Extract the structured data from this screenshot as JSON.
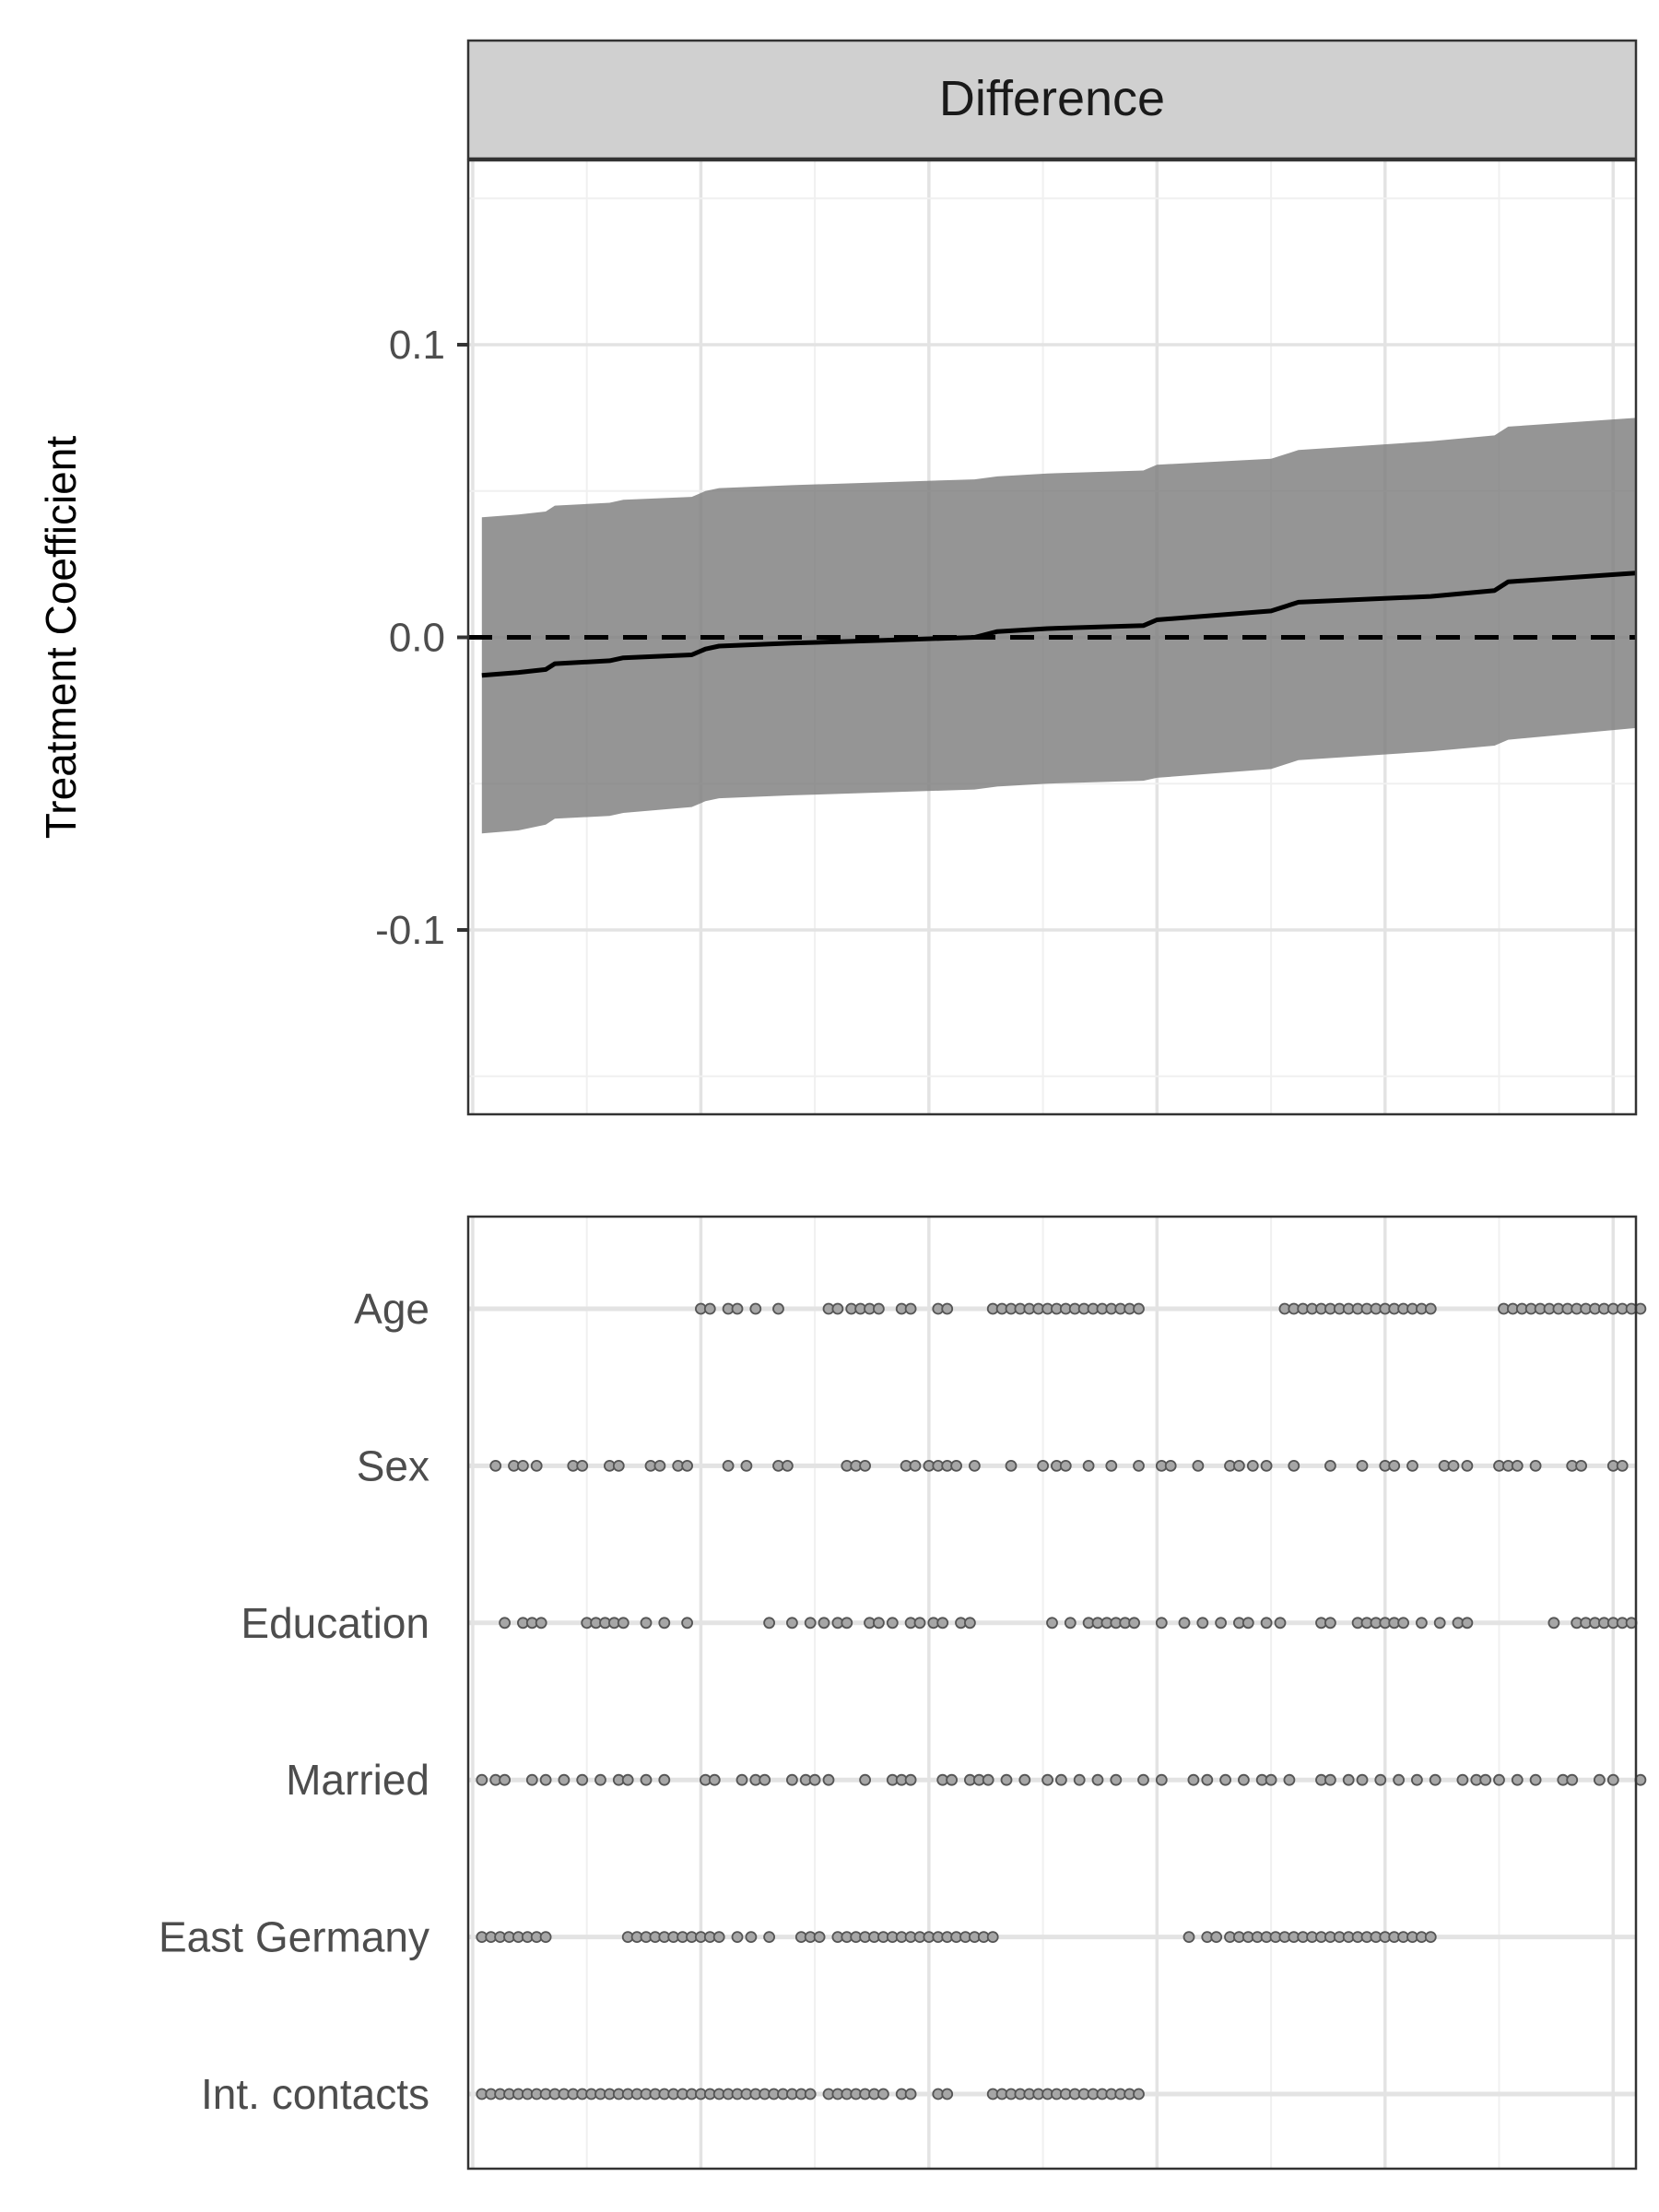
{
  "chart_data": [
    {
      "type": "line",
      "strip_title": "Difference",
      "ylabel": "Treatment Coefficient",
      "ylim": [
        -0.163,
        0.163
      ],
      "y_ticks": [
        -0.1,
        0.0,
        0.1
      ],
      "y_tick_labels": [
        "-0.1",
        "0.0",
        "0.1"
      ],
      "x_range": [
        -1,
        255
      ],
      "x_major_gridlines": [
        0,
        50,
        100,
        150,
        200,
        250
      ],
      "x_minor_gridlines": [
        25,
        75,
        125,
        175,
        225
      ],
      "grid": true,
      "reference_line": {
        "y": 0.0,
        "style": "dashed"
      },
      "series": [
        {
          "kind": "estimate",
          "x": [
            2,
            10,
            16,
            18,
            30,
            33,
            48,
            51,
            54,
            70,
            90,
            110,
            115,
            126,
            147,
            150,
            175,
            181,
            210,
            224,
            227,
            255
          ],
          "y": [
            -0.013,
            -0.012,
            -0.011,
            -0.009,
            -0.008,
            -0.007,
            -0.006,
            -0.004,
            -0.003,
            -0.002,
            -0.001,
            0.0,
            0.002,
            0.003,
            0.004,
            0.006,
            0.009,
            0.012,
            0.014,
            0.016,
            0.019,
            0.022
          ]
        },
        {
          "kind": "confidence-band",
          "x": [
            2,
            10,
            16,
            18,
            30,
            33,
            48,
            51,
            54,
            70,
            90,
            110,
            115,
            126,
            147,
            150,
            175,
            181,
            210,
            224,
            227,
            255
          ],
          "lower": [
            -0.067,
            -0.066,
            -0.064,
            -0.062,
            -0.061,
            -0.06,
            -0.058,
            -0.056,
            -0.055,
            -0.054,
            -0.053,
            -0.052,
            -0.051,
            -0.05,
            -0.049,
            -0.048,
            -0.045,
            -0.042,
            -0.039,
            -0.037,
            -0.035,
            -0.031
          ],
          "upper": [
            0.041,
            0.042,
            0.043,
            0.045,
            0.046,
            0.047,
            0.048,
            0.05,
            0.051,
            0.052,
            0.053,
            0.054,
            0.055,
            0.056,
            0.057,
            0.059,
            0.061,
            0.064,
            0.067,
            0.069,
            0.072,
            0.075
          ]
        }
      ]
    },
    {
      "type": "scatter",
      "categories": [
        "Age",
        "Sex",
        "Education",
        "Married",
        "East Germany",
        "Int. contacts"
      ],
      "x_range": [
        -1,
        255
      ],
      "x_major_gridlines": [
        0,
        50,
        100,
        150,
        200,
        250
      ],
      "x_minor_gridlines": [
        25,
        75,
        125,
        175,
        225
      ],
      "grid": true,
      "rows": [
        {
          "category": "Age",
          "x": [
            50,
            52,
            56,
            58,
            62,
            67,
            78,
            80,
            83,
            85,
            87,
            89,
            94,
            96,
            102,
            104,
            114,
            116,
            118,
            120,
            122,
            124,
            126,
            128,
            130,
            132,
            134,
            136,
            138,
            140,
            142,
            144,
            146,
            178,
            180,
            182,
            184,
            186,
            188,
            190,
            192,
            194,
            196,
            198,
            200,
            202,
            204,
            206,
            208,
            210,
            226,
            228,
            230,
            232,
            234,
            236,
            238,
            240,
            242,
            244,
            246,
            248,
            250,
            252,
            254,
            256
          ]
        },
        {
          "category": "Sex",
          "x": [
            5,
            9,
            11,
            14,
            22,
            24,
            30,
            32,
            39,
            41,
            45,
            47,
            56,
            60,
            67,
            69,
            82,
            84,
            86,
            95,
            97,
            100,
            102,
            104,
            106,
            110,
            118,
            125,
            128,
            130,
            135,
            140,
            146,
            151,
            153,
            159,
            166,
            168,
            171,
            174,
            180,
            188,
            195,
            200,
            202,
            206,
            213,
            215,
            218,
            225,
            227,
            229,
            233,
            241,
            243,
            250,
            252
          ]
        },
        {
          "category": "Education",
          "x": [
            7,
            11,
            13,
            15,
            25,
            27,
            29,
            31,
            33,
            38,
            42,
            47,
            65,
            70,
            74,
            77,
            80,
            82,
            87,
            89,
            92,
            96,
            98,
            101,
            103,
            107,
            109,
            127,
            131,
            135,
            137,
            139,
            141,
            143,
            145,
            151,
            156,
            160,
            164,
            168,
            170,
            174,
            177,
            186,
            188,
            194,
            196,
            198,
            200,
            202,
            204,
            208,
            212,
            216,
            218,
            237,
            242,
            244,
            246,
            248,
            250,
            252,
            254
          ]
        },
        {
          "category": "Married",
          "x": [
            2,
            5,
            7,
            13,
            16,
            20,
            24,
            28,
            32,
            34,
            38,
            42,
            51,
            53,
            59,
            62,
            64,
            70,
            73,
            75,
            78,
            86,
            92,
            94,
            96,
            103,
            105,
            109,
            111,
            113,
            117,
            121,
            126,
            129,
            133,
            137,
            141,
            147,
            151,
            158,
            161,
            165,
            169,
            173,
            175,
            179,
            186,
            188,
            192,
            195,
            199,
            203,
            207,
            211,
            217,
            220,
            222,
            225,
            229,
            233,
            239,
            241,
            247,
            250,
            256
          ]
        },
        {
          "category": "East Germany",
          "x": [
            2,
            4,
            6,
            8,
            10,
            12,
            14,
            16,
            34,
            36,
            38,
            40,
            42,
            44,
            46,
            48,
            50,
            52,
            54,
            58,
            61,
            65,
            72,
            74,
            76,
            80,
            82,
            84,
            86,
            88,
            90,
            92,
            94,
            96,
            98,
            100,
            102,
            104,
            106,
            108,
            110,
            112,
            114,
            157,
            161,
            163,
            166,
            168,
            170,
            172,
            174,
            176,
            178,
            180,
            182,
            184,
            186,
            188,
            190,
            192,
            194,
            196,
            198,
            200,
            202,
            204,
            206,
            208,
            210
          ]
        },
        {
          "category": "Int. contacts",
          "x": [
            2,
            4,
            6,
            8,
            10,
            12,
            14,
            16,
            18,
            20,
            22,
            24,
            26,
            28,
            30,
            32,
            34,
            36,
            38,
            40,
            42,
            44,
            46,
            48,
            50,
            52,
            54,
            56,
            58,
            60,
            62,
            64,
            66,
            68,
            70,
            72,
            74,
            78,
            80,
            82,
            84,
            86,
            88,
            90,
            94,
            96,
            102,
            104,
            114,
            116,
            118,
            120,
            122,
            124,
            126,
            128,
            130,
            132,
            134,
            136,
            138,
            140,
            142,
            144,
            146
          ]
        }
      ]
    }
  ]
}
